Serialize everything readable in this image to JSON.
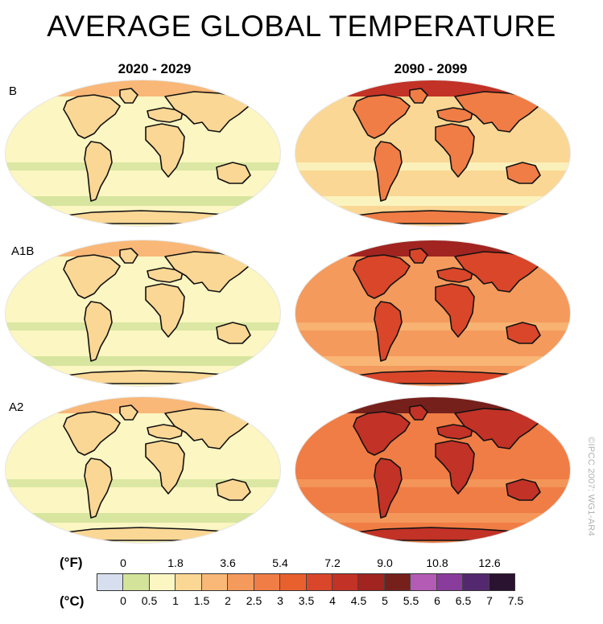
{
  "title": "AVERAGE GLOBAL TEMPERATURE",
  "columns": [
    "2020 - 2029",
    "2090 - 2099"
  ],
  "rows": [
    "B",
    "A1B",
    "A2"
  ],
  "watermark": "©IPCC 2007: WG1-AR4",
  "legend": {
    "fahrenheit_label": "(°F)",
    "celsius_label": "(°C)",
    "fahrenheit_ticks": [
      "0",
      "1.8",
      "3.6",
      "5.4",
      "7.2",
      "9.0",
      "10.8",
      "12.6"
    ],
    "celsius_ticks": [
      "0",
      "0.5",
      "1",
      "1.5",
      "2",
      "2.5",
      "3",
      "3.5",
      "4",
      "4.5",
      "5",
      "5.5",
      "6",
      "6.5",
      "7",
      "7.5"
    ],
    "colors": [
      "#d7dfef",
      "#d3e39a",
      "#fbf6c2",
      "#fbd795",
      "#f9b877",
      "#f49a5c",
      "#f07d45",
      "#e8602e",
      "#d9462a",
      "#c23226",
      "#a12420",
      "#76201c",
      "#b35bb5",
      "#8a3c9c",
      "#54286e",
      "#2a1330"
    ]
  },
  "maps": [
    {
      "scenario": "B",
      "period": "2020 - 2029",
      "colors": {
        "ocean": "#fbf6c2",
        "land": "#fbd795",
        "north": "#f9b877",
        "band": "#d3e39a"
      }
    },
    {
      "scenario": "B",
      "period": "2090 - 2099",
      "colors": {
        "ocean": "#fbd795",
        "land": "#f07d45",
        "north": "#c23226",
        "band": "#fbf6c2"
      }
    },
    {
      "scenario": "A1B",
      "period": "2020 - 2029",
      "colors": {
        "ocean": "#fbf6c2",
        "land": "#fbd795",
        "north": "#f9b877",
        "band": "#d3e39a"
      }
    },
    {
      "scenario": "A1B",
      "period": "2090 - 2099",
      "colors": {
        "ocean": "#f49a5c",
        "land": "#d9462a",
        "north": "#a12420",
        "band": "#f9b877"
      }
    },
    {
      "scenario": "A2",
      "period": "2020 - 2029",
      "colors": {
        "ocean": "#fbf6c2",
        "land": "#fbd795",
        "north": "#f9b877",
        "band": "#d3e39a"
      }
    },
    {
      "scenario": "A2",
      "period": "2090 - 2099",
      "colors": {
        "ocean": "#f07d45",
        "land": "#c23226",
        "north": "#76201c",
        "band": "#f49a5c"
      }
    }
  ]
}
